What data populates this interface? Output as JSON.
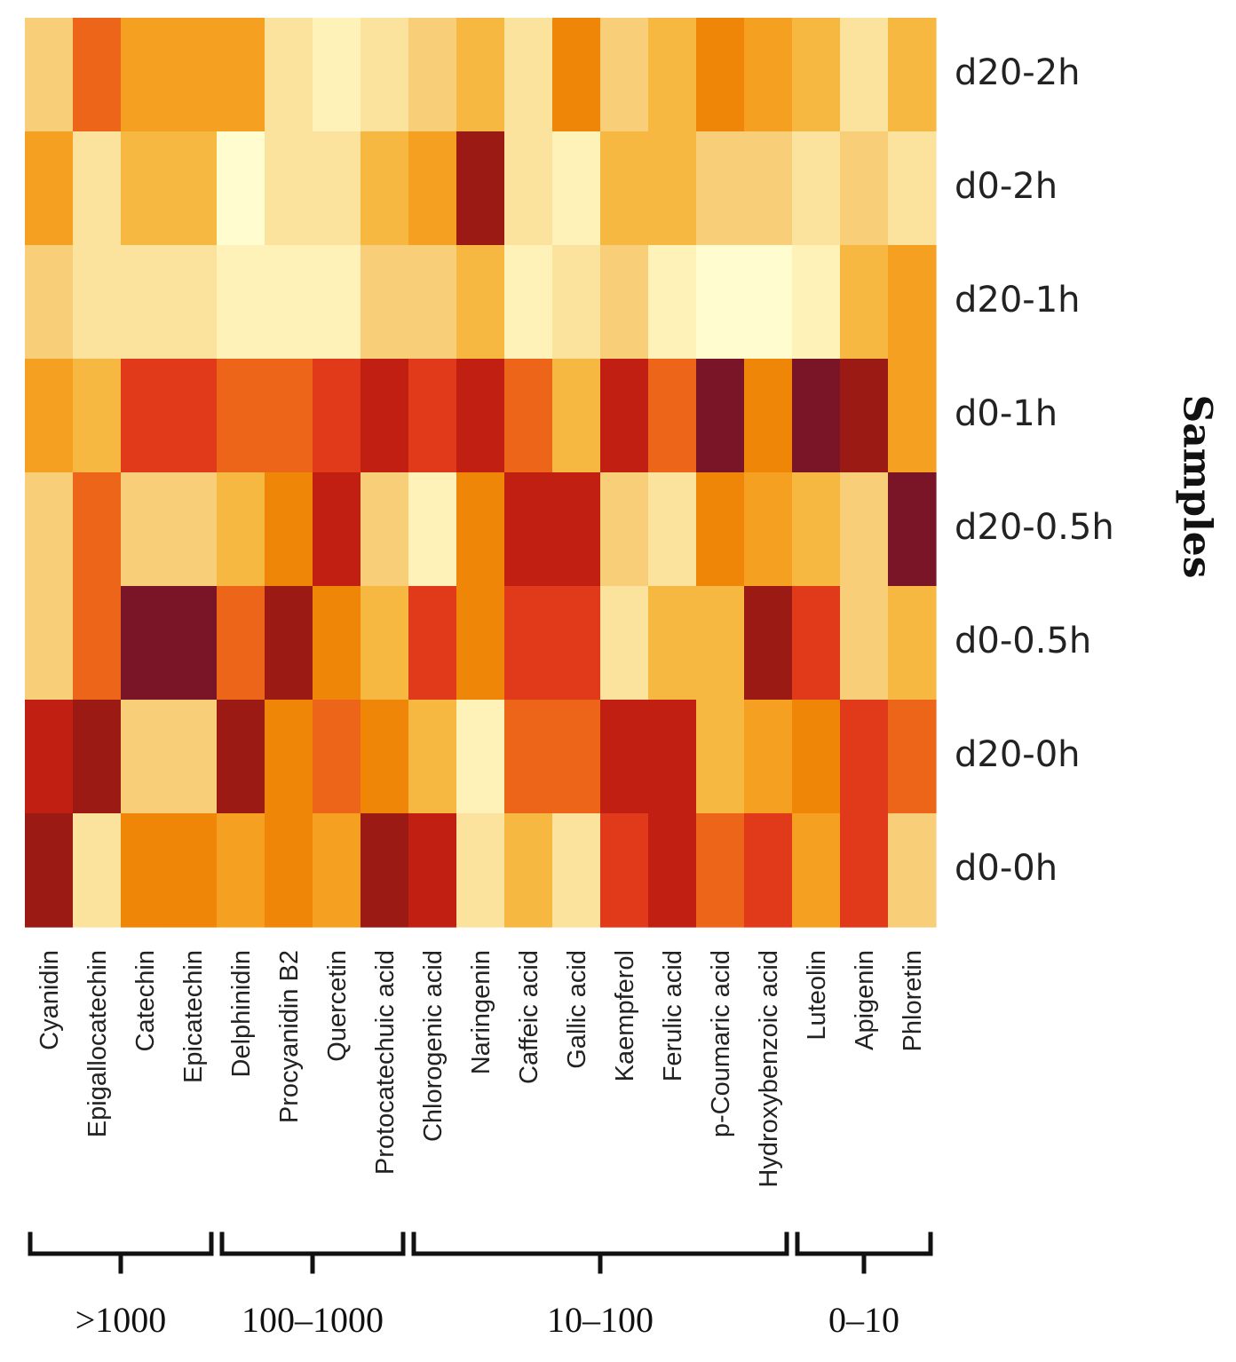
{
  "chart_data": {
    "type": "heatmap",
    "title": "",
    "ylabel": "Samples",
    "xlabel": "",
    "rows": [
      "d20-2h",
      "d0-2h",
      "d20-1h",
      "d0-1h",
      "d20-0.5h",
      "d0-0.5h",
      "d20-0h",
      "d0-0h"
    ],
    "columns": [
      "Cyanidin",
      "Epigallocatechin",
      "Catechin",
      "Epicatechin",
      "Delphinidin",
      "Procyanidin B2",
      "Quercetin",
      "Protocatechuic acid",
      "Chlorogenic acid",
      "Naringenin",
      "Caffeic acid",
      "Gallic acid",
      "Kaempferol",
      "Ferulic acid",
      "p-Coumaric acid",
      "Hydroxybenzoic acid",
      "Luteolin",
      "Apigenin",
      "Phloretin"
    ],
    "color_scale": {
      "low": "#fffdd0",
      "high": "#7a1528",
      "stops": [
        "#fffdd0",
        "#fef2b8",
        "#fbe29d",
        "#f8cf78",
        "#f6b840",
        "#f5a020",
        "#f08608",
        "#ec6518",
        "#e03a1a",
        "#c21f13",
        "#9c1a14",
        "#7a1528"
      ]
    },
    "values": [
      [
        3,
        7,
        5,
        5,
        5,
        2,
        1,
        2,
        3,
        4,
        2,
        6,
        3,
        4,
        6,
        5,
        4,
        2,
        4
      ],
      [
        5,
        2,
        4,
        4,
        0,
        2,
        2,
        4,
        5,
        10,
        2,
        1,
        4,
        4,
        3,
        3,
        2,
        3,
        2
      ],
      [
        3,
        2,
        2,
        2,
        1,
        1,
        1,
        3,
        3,
        4,
        1,
        2,
        3,
        1,
        0,
        0,
        1,
        4,
        5
      ],
      [
        5,
        4,
        8,
        8,
        7,
        7,
        8,
        9,
        8,
        9,
        7,
        4,
        9,
        7,
        11,
        6,
        11,
        10,
        5
      ],
      [
        3,
        7,
        3,
        3,
        4,
        6,
        9,
        3,
        1,
        6,
        9,
        9,
        3,
        2,
        6,
        5,
        4,
        3,
        11
      ],
      [
        3,
        7,
        11,
        11,
        7,
        10,
        6,
        4,
        8,
        6,
        8,
        8,
        2,
        4,
        4,
        10,
        8,
        3,
        4
      ],
      [
        9,
        10,
        3,
        3,
        10,
        6,
        7,
        6,
        4,
        1,
        7,
        7,
        9,
        9,
        4,
        5,
        6,
        8,
        7
      ],
      [
        10,
        2,
        6,
        6,
        5,
        6,
        5,
        10,
        9,
        2,
        4,
        2,
        8,
        9,
        7,
        8,
        5,
        8,
        3
      ]
    ],
    "groups": [
      {
        "label": ">1000",
        "members": [
          "Cyanidin",
          "Epigallocatechin",
          "Catechin",
          "Epicatechin"
        ]
      },
      {
        "label": "100–1000",
        "members": [
          "Delphinidin",
          "Procyanidin B2",
          "Quercetin",
          "Protocatechuic acid"
        ]
      },
      {
        "label": "10–100",
        "members": [
          "Chlorogenic acid",
          "Naringenin",
          "Caffeic acid",
          "Gallic acid",
          "Kaempferol",
          "Ferulic acid",
          "p-Coumaric acid",
          "Hydroxybenzoic acid"
        ]
      },
      {
        "label": "0–10",
        "members": [
          "Luteolin",
          "Apigenin",
          "Phloretin"
        ]
      }
    ]
  }
}
